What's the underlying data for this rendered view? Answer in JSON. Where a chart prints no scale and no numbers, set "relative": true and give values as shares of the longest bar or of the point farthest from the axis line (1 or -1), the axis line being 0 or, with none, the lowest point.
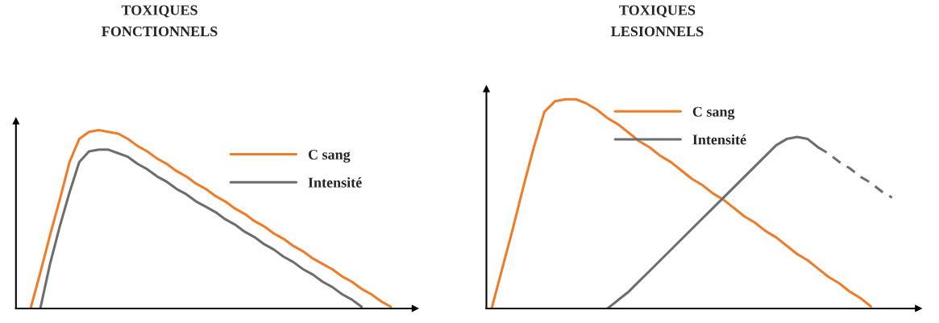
{
  "chart_data": [
    {
      "type": "line",
      "title": "TOXIQUES\nFONCTIONNELS",
      "relative": true,
      "legend": "top right",
      "categories": [
        null,
        null,
        null,
        null,
        null,
        null,
        null,
        null,
        null,
        null,
        null,
        null,
        null,
        null,
        null,
        null,
        null,
        null,
        null,
        null,
        null,
        null,
        null,
        null,
        null,
        null,
        null,
        null,
        null,
        null,
        null,
        null,
        null,
        null,
        null,
        null,
        null,
        null,
        null,
        null,
        null
      ],
      "series": [
        {
          "name": "C sang",
          "color": "#f07c28",
          "values": [
            null,
            0,
            0.2,
            0.41,
            0.61,
            0.82,
            0.95,
            0.99,
            1,
            0.99,
            0.98,
            0.95,
            0.91,
            0.88,
            0.84,
            0.81,
            0.77,
            0.74,
            0.7,
            0.67,
            0.63,
            0.6,
            0.56,
            0.53,
            0.49,
            0.46,
            0.42,
            0.39,
            0.35,
            0.32,
            0.28,
            0.25,
            0.22,
            0.18,
            0.15,
            0.11,
            0.08,
            0.04,
            0.01,
            null,
            null
          ]
        },
        {
          "name": "Intensité",
          "color": "#6d6d6d",
          "values": [
            null,
            null,
            0,
            0.25,
            0.46,
            0.65,
            0.82,
            0.88,
            0.89,
            0.89,
            0.87,
            0.85,
            0.81,
            0.78,
            0.74,
            0.71,
            0.67,
            0.64,
            0.6,
            0.57,
            0.54,
            0.5,
            0.47,
            0.43,
            0.4,
            0.36,
            0.33,
            0.29,
            0.26,
            0.22,
            0.19,
            0.15,
            0.12,
            0.08,
            0.05,
            0.01,
            null,
            null,
            null,
            null,
            null
          ]
        }
      ]
    },
    {
      "type": "line",
      "title": "TOXIQUES\nLESIONNELS",
      "relative": true,
      "legend": "top",
      "categories": [
        null,
        null,
        null,
        null,
        null,
        null,
        null,
        null,
        null,
        null,
        null,
        null,
        null,
        null,
        null,
        null,
        null,
        null,
        null,
        null,
        null,
        null,
        null,
        null,
        null,
        null,
        null,
        null,
        null,
        null,
        null,
        null,
        null,
        null,
        null,
        null,
        null,
        null,
        null,
        null,
        null
      ],
      "series": [
        {
          "name": "C sang",
          "color": "#f07c28",
          "values": [
            0,
            0.19,
            0.38,
            0.58,
            0.77,
            0.94,
            0.99,
            1,
            1,
            0.98,
            0.95,
            0.91,
            0.88,
            0.84,
            0.8,
            0.77,
            0.73,
            0.7,
            0.66,
            0.62,
            0.59,
            0.55,
            0.52,
            0.48,
            0.44,
            0.41,
            0.37,
            0.34,
            0.3,
            0.26,
            0.23,
            0.19,
            0.15,
            0.12,
            0.08,
            0.05,
            0.01,
            null,
            null,
            null,
            null
          ]
        },
        {
          "name": "Intensité",
          "color": "#6d6d6d",
          "values": [
            null,
            null,
            null,
            null,
            null,
            null,
            null,
            null,
            null,
            null,
            null,
            0,
            0.04,
            0.08,
            0.13,
            0.18,
            0.23,
            0.28,
            0.33,
            0.38,
            0.43,
            0.48,
            0.53,
            0.58,
            0.63,
            0.68,
            0.73,
            0.78,
            0.81,
            0.82,
            0.81,
            0.77,
            null,
            null,
            null,
            null,
            null,
            null,
            null,
            null,
            null
          ]
        },
        {
          "color": "#6d6d6d",
          "line_style": "dashed",
          "values": [
            null,
            null,
            null,
            null,
            null,
            null,
            null,
            null,
            null,
            null,
            null,
            null,
            null,
            null,
            null,
            null,
            null,
            null,
            null,
            null,
            null,
            null,
            null,
            null,
            null,
            null,
            null,
            null,
            null,
            null,
            null,
            0.77,
            0.74,
            0.7,
            0.67,
            0.63,
            0.6,
            0.56,
            0.53,
            null,
            null
          ]
        }
      ]
    }
  ]
}
